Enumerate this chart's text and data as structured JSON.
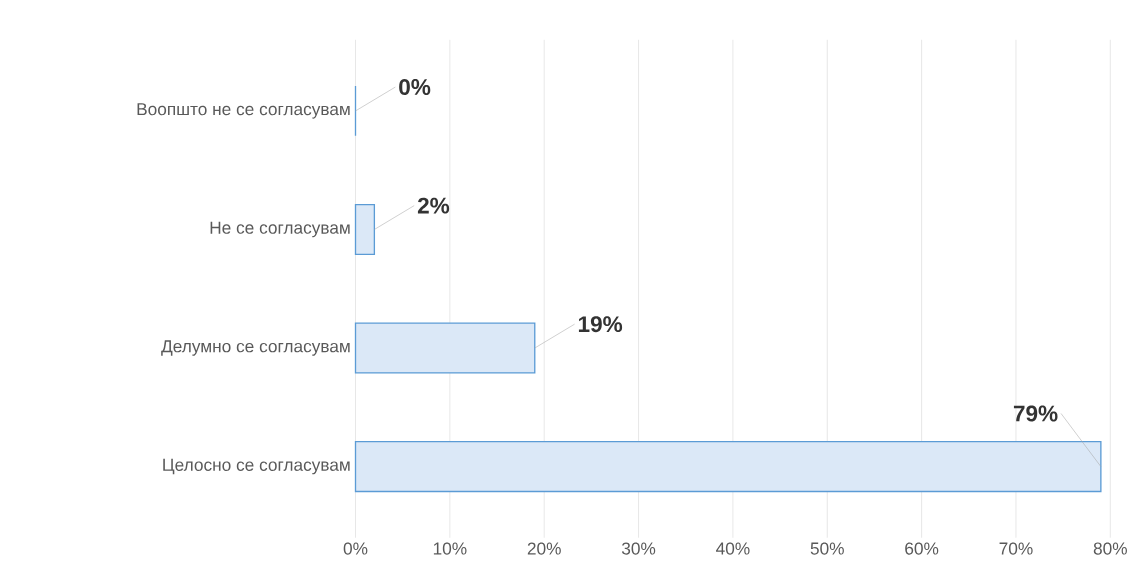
{
  "chart_data": {
    "type": "bar",
    "orientation": "horizontal",
    "categories": [
      "Воопшто не се согласувам",
      "Не се согласувам",
      "Делумно се согласувам",
      "Целосно се согласувам"
    ],
    "values": [
      0,
      2,
      19,
      79
    ],
    "value_labels": [
      "0%",
      "2%",
      "19%",
      "79%"
    ],
    "color": "#dbe8f7",
    "xlim": [
      0,
      80
    ],
    "xticks": [
      {
        "value": 0,
        "label": "0%"
      },
      {
        "value": 10,
        "label": "10%"
      },
      {
        "value": 20,
        "label": "20%"
      },
      {
        "value": 30,
        "label": "30%"
      },
      {
        "value": 40,
        "label": "40%"
      },
      {
        "value": 50,
        "label": "50%"
      },
      {
        "value": 60,
        "label": "60%"
      },
      {
        "value": 70,
        "label": "70%"
      },
      {
        "value": 80,
        "label": "80%"
      }
    ],
    "grid": "x"
  }
}
